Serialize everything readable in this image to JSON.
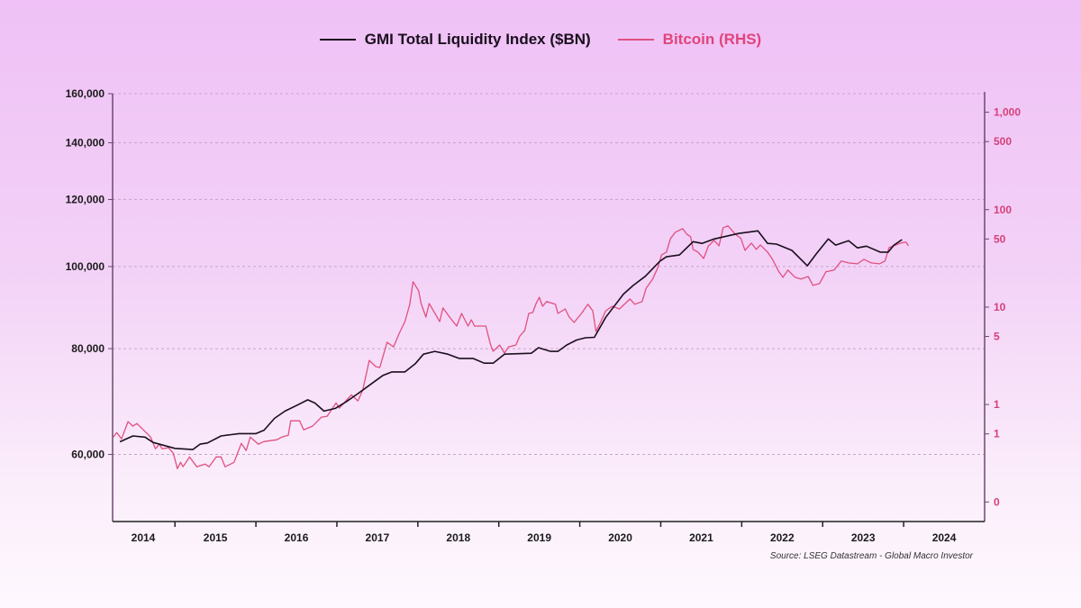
{
  "chart_data": {
    "type": "line",
    "title": "",
    "legend_position": "top-center",
    "source": "Source: LSEG Datastream - Global Macro Investor",
    "colors": {
      "gmi": "#1a0f1e",
      "btc": "#e0507f",
      "right_axis": "#d6407a",
      "grid": "#c9a6cc",
      "axis": "#6b4a6e"
    },
    "x": {
      "range": [
        2014.23,
        2025.0
      ],
      "tick_boundaries": [
        2015,
        2016,
        2017,
        2018,
        2019,
        2020,
        2021,
        2022,
        2023,
        2024
      ],
      "labels": [
        "2014",
        "2015",
        "2016",
        "2017",
        "2018",
        "2019",
        "2020",
        "2021",
        "2022",
        "2023",
        "2024"
      ]
    },
    "y_left": {
      "scale": "log",
      "range": [
        50000,
        160000
      ],
      "ticks": [
        {
          "value": 160000,
          "label": "160,000"
        },
        {
          "value": 140000,
          "label": "140,000"
        },
        {
          "value": 120000,
          "label": "120,000"
        },
        {
          "value": 100000,
          "label": "100,000"
        },
        {
          "value": 80000,
          "label": "80,000"
        },
        {
          "value": 60000,
          "label": "60,000"
        }
      ]
    },
    "y_right": {
      "scale": "log",
      "range": [
        0.063,
        1550
      ],
      "ticks": [
        {
          "value": 1000,
          "label": "1,000"
        },
        {
          "value": 500,
          "label": "500"
        },
        {
          "value": 100,
          "label": "100"
        },
        {
          "value": 50,
          "label": "50"
        },
        {
          "value": 10,
          "label": "10"
        },
        {
          "value": 5,
          "label": "5"
        },
        {
          "value": 1,
          "label": "1"
        },
        {
          "value": 0.5,
          "label": "1"
        },
        {
          "value": 0.1,
          "label": "0"
        }
      ]
    },
    "series": [
      {
        "name": "GMI Total Liquidity Index ($BN)",
        "axis": "left",
        "color_key": "gmi",
        "points": [
          [
            2014.32,
            62100
          ],
          [
            2014.48,
            63100
          ],
          [
            2014.63,
            62900
          ],
          [
            2014.73,
            62000
          ],
          [
            2015.0,
            61000
          ],
          [
            2015.22,
            60800
          ],
          [
            2015.31,
            61700
          ],
          [
            2015.4,
            61900
          ],
          [
            2015.57,
            63100
          ],
          [
            2015.79,
            63500
          ],
          [
            2016.0,
            63500
          ],
          [
            2016.1,
            64100
          ],
          [
            2016.23,
            66200
          ],
          [
            2016.36,
            67500
          ],
          [
            2016.51,
            68600
          ],
          [
            2016.64,
            69600
          ],
          [
            2016.73,
            69000
          ],
          [
            2016.84,
            67500
          ],
          [
            2016.98,
            68000
          ],
          [
            2017.12,
            69300
          ],
          [
            2017.26,
            70800
          ],
          [
            2017.4,
            72400
          ],
          [
            2017.57,
            74400
          ],
          [
            2017.68,
            75100
          ],
          [
            2017.84,
            75100
          ],
          [
            2017.97,
            76800
          ],
          [
            2018.07,
            78800
          ],
          [
            2018.21,
            79400
          ],
          [
            2018.37,
            78800
          ],
          [
            2018.51,
            77900
          ],
          [
            2018.68,
            77900
          ],
          [
            2018.82,
            76900
          ],
          [
            2018.93,
            76900
          ],
          [
            2019.07,
            78800
          ],
          [
            2019.4,
            79000
          ],
          [
            2019.49,
            80200
          ],
          [
            2019.64,
            79400
          ],
          [
            2019.73,
            79400
          ],
          [
            2019.84,
            80800
          ],
          [
            2019.96,
            81900
          ],
          [
            2020.07,
            82400
          ],
          [
            2020.18,
            82500
          ],
          [
            2020.32,
            87100
          ],
          [
            2020.54,
            92800
          ],
          [
            2020.66,
            95000
          ],
          [
            2020.81,
            97400
          ],
          [
            2020.99,
            101500
          ],
          [
            2021.07,
            102700
          ],
          [
            2021.23,
            103200
          ],
          [
            2021.4,
            107000
          ],
          [
            2021.51,
            106500
          ],
          [
            2021.66,
            107800
          ],
          [
            2021.96,
            109400
          ],
          [
            2022.2,
            110200
          ],
          [
            2022.32,
            106500
          ],
          [
            2022.43,
            106300
          ],
          [
            2022.62,
            104500
          ],
          [
            2022.81,
            100200
          ],
          [
            2022.92,
            103500
          ],
          [
            2023.07,
            107800
          ],
          [
            2023.16,
            106000
          ],
          [
            2023.32,
            107300
          ],
          [
            2023.43,
            105200
          ],
          [
            2023.54,
            105700
          ],
          [
            2023.71,
            104000
          ],
          [
            2023.81,
            104000
          ],
          [
            2023.88,
            106000
          ],
          [
            2023.98,
            107600
          ]
        ]
      },
      {
        "name": "Bitcoin (RHS)",
        "axis": "right",
        "color_key": "btc",
        "points": [
          [
            2014.24,
            0.464
          ],
          [
            2014.28,
            0.516
          ],
          [
            2014.34,
            0.445
          ],
          [
            2014.42,
            0.667
          ],
          [
            2014.48,
            0.6
          ],
          [
            2014.53,
            0.639
          ],
          [
            2014.62,
            0.539
          ],
          [
            2014.7,
            0.464
          ],
          [
            2014.76,
            0.352
          ],
          [
            2014.81,
            0.392
          ],
          [
            2014.84,
            0.352
          ],
          [
            2014.92,
            0.36
          ],
          [
            2014.98,
            0.316
          ],
          [
            2015.03,
            0.22
          ],
          [
            2015.07,
            0.255
          ],
          [
            2015.1,
            0.23
          ],
          [
            2015.18,
            0.29
          ],
          [
            2015.27,
            0.23
          ],
          [
            2015.37,
            0.245
          ],
          [
            2015.42,
            0.23
          ],
          [
            2015.51,
            0.29
          ],
          [
            2015.57,
            0.29
          ],
          [
            2015.62,
            0.23
          ],
          [
            2015.73,
            0.255
          ],
          [
            2015.82,
            0.4
          ],
          [
            2015.88,
            0.337
          ],
          [
            2015.93,
            0.464
          ],
          [
            2016.03,
            0.392
          ],
          [
            2016.1,
            0.417
          ],
          [
            2016.26,
            0.435
          ],
          [
            2016.32,
            0.464
          ],
          [
            2016.4,
            0.484
          ],
          [
            2016.43,
            0.681
          ],
          [
            2016.54,
            0.681
          ],
          [
            2016.59,
            0.551
          ],
          [
            2016.7,
            0.6
          ],
          [
            2016.81,
            0.742
          ],
          [
            2016.88,
            0.758
          ],
          [
            2016.99,
            1.04
          ],
          [
            2017.03,
            0.918
          ],
          [
            2017.18,
            1.26
          ],
          [
            2017.26,
            1.09
          ],
          [
            2017.32,
            1.41
          ],
          [
            2017.4,
            2.84
          ],
          [
            2017.48,
            2.45
          ],
          [
            2017.53,
            2.4
          ],
          [
            2017.62,
            4.35
          ],
          [
            2017.7,
            3.91
          ],
          [
            2017.77,
            5.39
          ],
          [
            2017.84,
            7.11
          ],
          [
            2017.9,
            10.7
          ],
          [
            2017.94,
            18.2
          ],
          [
            2018.01,
            14.7
          ],
          [
            2018.04,
            10.9
          ],
          [
            2018.1,
            7.91
          ],
          [
            2018.14,
            10.9
          ],
          [
            2018.27,
            7.11
          ],
          [
            2018.31,
            9.79
          ],
          [
            2018.4,
            7.74
          ],
          [
            2018.48,
            6.39
          ],
          [
            2018.54,
            8.61
          ],
          [
            2018.62,
            6.39
          ],
          [
            2018.66,
            7.42
          ],
          [
            2018.7,
            6.39
          ],
          [
            2018.84,
            6.39
          ],
          [
            2018.9,
            4.08
          ],
          [
            2018.93,
            3.52
          ],
          [
            2019.01,
            4.08
          ],
          [
            2019.07,
            3.37
          ],
          [
            2019.12,
            3.91
          ],
          [
            2019.21,
            4.08
          ],
          [
            2019.26,
            5.05
          ],
          [
            2019.32,
            5.75
          ],
          [
            2019.37,
            8.61
          ],
          [
            2019.42,
            8.8
          ],
          [
            2019.46,
            10.9
          ],
          [
            2019.5,
            12.6
          ],
          [
            2019.54,
            10.2
          ],
          [
            2019.59,
            11.4
          ],
          [
            2019.7,
            10.7
          ],
          [
            2019.73,
            8.61
          ],
          [
            2019.82,
            9.58
          ],
          [
            2019.87,
            7.91
          ],
          [
            2019.93,
            6.96
          ],
          [
            2020.03,
            8.8
          ],
          [
            2020.1,
            10.7
          ],
          [
            2020.16,
            9.18
          ],
          [
            2020.2,
            5.62
          ],
          [
            2020.26,
            7.11
          ],
          [
            2020.32,
            9.18
          ],
          [
            2020.4,
            10.2
          ],
          [
            2020.49,
            9.58
          ],
          [
            2020.62,
            12.1
          ],
          [
            2020.68,
            10.7
          ],
          [
            2020.77,
            11.4
          ],
          [
            2020.82,
            15.6
          ],
          [
            2020.9,
            19.4
          ],
          [
            2020.96,
            25.0
          ],
          [
            2021.01,
            34.4
          ],
          [
            2021.07,
            36.7
          ],
          [
            2021.12,
            50.6
          ],
          [
            2021.18,
            58.7
          ],
          [
            2021.27,
            63.9
          ],
          [
            2021.32,
            56.2
          ],
          [
            2021.37,
            52.7
          ],
          [
            2021.4,
            39.1
          ],
          [
            2021.46,
            36.7
          ],
          [
            2021.53,
            31.6
          ],
          [
            2021.59,
            42.6
          ],
          [
            2021.66,
            48.4
          ],
          [
            2021.72,
            42.6
          ],
          [
            2021.77,
            65.3
          ],
          [
            2021.83,
            68.1
          ],
          [
            2021.92,
            56.2
          ],
          [
            2021.99,
            50.6
          ],
          [
            2022.04,
            38.3
          ],
          [
            2022.12,
            45.4
          ],
          [
            2022.18,
            39.1
          ],
          [
            2022.23,
            43.5
          ],
          [
            2022.32,
            36.7
          ],
          [
            2022.38,
            30.9
          ],
          [
            2022.46,
            23.0
          ],
          [
            2022.51,
            20.2
          ],
          [
            2022.57,
            24.0
          ],
          [
            2022.66,
            20.2
          ],
          [
            2022.73,
            19.4
          ],
          [
            2022.82,
            20.6
          ],
          [
            2022.88,
            16.7
          ],
          [
            2022.96,
            17.4
          ],
          [
            2023.04,
            23.0
          ],
          [
            2023.14,
            24.0
          ],
          [
            2023.23,
            29.7
          ],
          [
            2023.32,
            28.4
          ],
          [
            2023.43,
            27.8
          ],
          [
            2023.51,
            30.9
          ],
          [
            2023.6,
            28.4
          ],
          [
            2023.7,
            27.8
          ],
          [
            2023.77,
            29.7
          ],
          [
            2023.82,
            40.8
          ],
          [
            2023.88,
            42.6
          ],
          [
            2023.96,
            45.4
          ],
          [
            2024.03,
            46.4
          ],
          [
            2024.06,
            42.6
          ]
        ]
      }
    ]
  }
}
